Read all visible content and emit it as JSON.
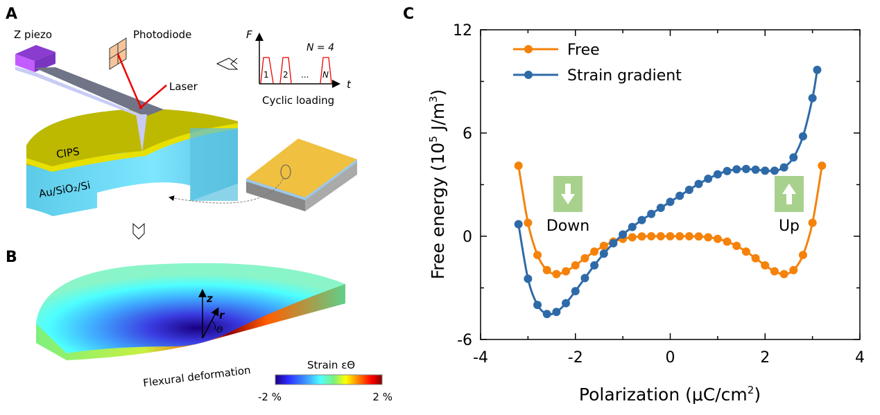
{
  "panels": {
    "a": {
      "letter": "A",
      "z_piezo": "Z piezo",
      "photodiode": "Photodiode",
      "laser": "Laser",
      "cips": "CIPS",
      "substrate": "Au/SiO₂/Si",
      "inset": {
        "f_axis": "F",
        "t_axis": "t",
        "n_label": "N = 4",
        "pulse_labels": [
          "1",
          "2",
          "N"
        ],
        "ellipsis": "...",
        "caption": "Cyclic loading"
      }
    },
    "b": {
      "letter": "B",
      "z_axis": "z",
      "r_axis": "r",
      "theta": "Θ",
      "caption": "Flexural deformation",
      "colorbar_title": "Strain εΘ",
      "colorbar_min": "-2 %",
      "colorbar_max": "2 %",
      "colormap": [
        "#1a0080",
        "#2c2cff",
        "#3fa0ff",
        "#4dffff",
        "#7df07d",
        "#ffff00",
        "#ff8000",
        "#ff0000",
        "#800000"
      ]
    },
    "c": {
      "letter": "C"
    }
  },
  "chart_data": {
    "type": "line",
    "xlabel": "Polarization (μC/cm²)",
    "xlabel_parts": [
      "Polarization (μC/cm",
      "2",
      ")"
    ],
    "ylabel": "Free energy (10⁵ J/m³)",
    "ylabel_parts": [
      "Free energy (10",
      "5",
      " J/m",
      "3",
      ")"
    ],
    "xlim": [
      -4,
      4
    ],
    "ylim": [
      -6,
      12
    ],
    "xticks": [
      "-4",
      "-2",
      "0",
      "2",
      "4"
    ],
    "yticks": [
      "-6",
      "0",
      "6",
      "12"
    ],
    "grid": false,
    "legend_position": "top-left",
    "annotations": {
      "down": {
        "label": "Down",
        "icon": "arrow-down-icon"
      },
      "up": {
        "label": "Up",
        "icon": "arrow-up-icon"
      },
      "box_color": "#a9d18e"
    },
    "series": [
      {
        "name": "Free",
        "color": "#f5820a",
        "x": [
          -3.2,
          -3.0,
          -2.8,
          -2.6,
          -2.4,
          -2.2,
          -2.0,
          -1.8,
          -1.6,
          -1.4,
          -1.2,
          -1.0,
          -0.8,
          -0.6,
          -0.4,
          -0.2,
          0,
          0.2,
          0.4,
          0.6,
          0.8,
          1.0,
          1.2,
          1.4,
          1.6,
          1.8,
          2.0,
          2.2,
          2.4,
          2.6,
          2.8,
          3.0,
          3.2
        ],
        "y": [
          4.1,
          0.78,
          -1.09,
          -1.97,
          -2.2,
          -2.04,
          -1.69,
          -1.28,
          -0.89,
          -0.56,
          -0.31,
          -0.15,
          -0.06,
          -0.01,
          0,
          0,
          0,
          0,
          0,
          -0.01,
          -0.06,
          -0.15,
          -0.31,
          -0.56,
          -0.89,
          -1.28,
          -1.69,
          -2.04,
          -2.2,
          -1.97,
          -1.09,
          0.78,
          4.1
        ]
      },
      {
        "name": "Strain gradient",
        "color": "#2e6aa8",
        "x": [
          -3.2,
          -3.0,
          -2.8,
          -2.6,
          -2.4,
          -2.2,
          -2.0,
          -1.8,
          -1.6,
          -1.4,
          -1.2,
          -1.0,
          -0.8,
          -0.6,
          -0.4,
          -0.2,
          0,
          0.2,
          0.4,
          0.6,
          0.8,
          1.0,
          1.2,
          1.4,
          1.6,
          1.8,
          2.0,
          2.2,
          2.4,
          2.6,
          2.8,
          3.0,
          3.1
        ],
        "y": [
          0.7,
          -2.47,
          -3.99,
          -4.52,
          -4.4,
          -3.89,
          -3.19,
          -2.43,
          -1.69,
          -1.01,
          -0.41,
          0.1,
          0.54,
          0.94,
          1.3,
          1.65,
          2.0,
          2.35,
          2.7,
          3.04,
          3.34,
          3.6,
          3.79,
          3.89,
          3.91,
          3.87,
          3.81,
          3.81,
          4.0,
          4.58,
          5.81,
          8.03,
          9.67
        ]
      }
    ]
  }
}
